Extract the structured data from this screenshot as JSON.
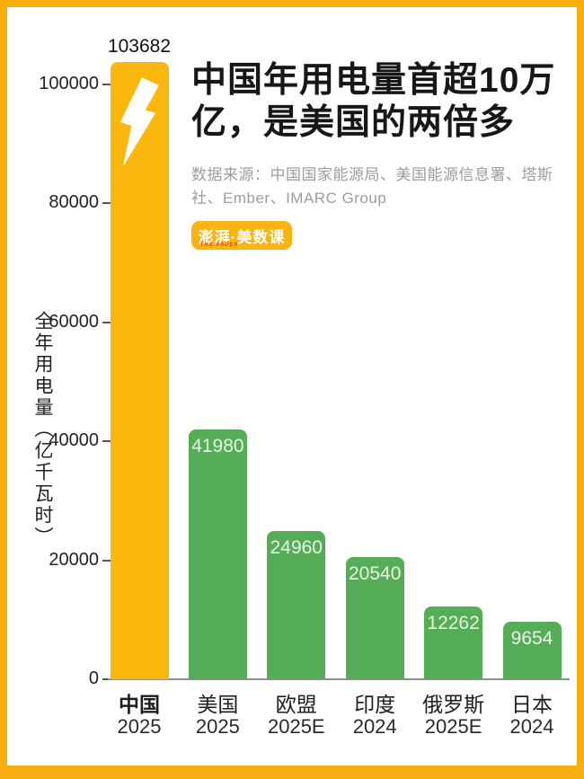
{
  "page": {
    "frame_color": "#F5AD10",
    "background": "#ffffff"
  },
  "header": {
    "title_lines": [
      "中国年用电量首超10万",
      "亿，是美国的两倍多"
    ],
    "title_full": "中国年用电量首超10万亿，是美国的两倍多",
    "source": "数据来源：中国国家能源局、美国能源信息署、塔斯社、Ember、IMARC Group",
    "logo": {
      "text": "澎湃·美数课",
      "tagline": "THE PAPER",
      "bg": "#F9B412",
      "text_color": "#ffffff",
      "tagline_color": "#E0452C"
    }
  },
  "chart_data": {
    "type": "bar",
    "title": "中国年用电量首超10万亿，是美国的两倍多",
    "xlabel": "",
    "ylabel": "全年用电量（亿千瓦时）",
    "categories": [
      "中国",
      "美国",
      "欧盟",
      "印度",
      "俄罗斯",
      "日本"
    ],
    "period_labels": [
      "2025",
      "2025",
      "2025E",
      "2024",
      "2025E",
      "2024"
    ],
    "values": [
      103682,
      41980,
      24960,
      20540,
      12262,
      9654
    ],
    "bar_colors": [
      "#FBB70E",
      "#55AE57",
      "#55AE57",
      "#55AE57",
      "#55AE57",
      "#55AE57"
    ],
    "value_label_positions": [
      "above",
      "inside",
      "inside",
      "inside",
      "inside",
      "inside"
    ],
    "bar_icons": [
      "lightning-bolt-icon",
      null,
      null,
      null,
      null,
      null
    ],
    "bold_categories": [
      true,
      false,
      false,
      false,
      false,
      false
    ],
    "yticks": [
      0,
      20000,
      40000,
      60000,
      80000,
      100000
    ],
    "ylim": [
      0,
      104000
    ],
    "grid": false,
    "legend": false,
    "inside_label_color": "#E9F6E4",
    "above_label_color": "#111111",
    "axis_color": "#8f8f8f",
    "tick_color": "#222222"
  }
}
